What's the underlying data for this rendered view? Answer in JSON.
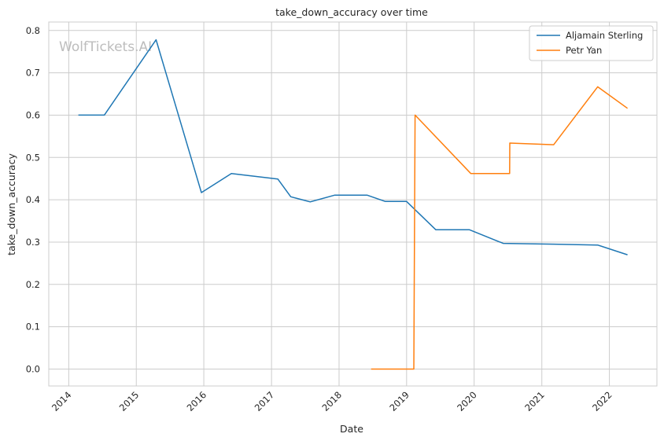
{
  "chart_data": {
    "type": "line",
    "title": "take_down_accuracy over time",
    "xlabel": "Date",
    "ylabel": "take_down_accuracy",
    "watermark": "WolfTickets.AI",
    "x_ticks": [
      "2014",
      "2015",
      "2016",
      "2017",
      "2018",
      "2019",
      "2020",
      "2021",
      "2022"
    ],
    "y_ticks": [
      "0.0",
      "0.1",
      "0.2",
      "0.3",
      "0.4",
      "0.5",
      "0.6",
      "0.7",
      "0.8"
    ],
    "xlim": [
      "2013-09-15",
      "2022-09-15"
    ],
    "ylim": [
      -0.04,
      0.82
    ],
    "grid": true,
    "legend_position": "top-right",
    "series": [
      {
        "name": "Aljamain Sterling",
        "color": "#1f77b4",
        "points": [
          [
            "2014-02-22",
            0.6
          ],
          [
            "2014-07-12",
            0.6
          ],
          [
            "2015-04-18",
            0.778
          ],
          [
            "2015-12-19",
            0.417
          ],
          [
            "2016-05-29",
            0.462
          ],
          [
            "2017-02-04",
            0.449
          ],
          [
            "2017-04-15",
            0.407
          ],
          [
            "2017-07-29",
            0.395
          ],
          [
            "2017-12-09",
            0.411
          ],
          [
            "2018-06-01",
            0.411
          ],
          [
            "2018-09-08",
            0.396
          ],
          [
            "2019-01-01",
            0.396
          ],
          [
            "2019-06-08",
            0.329
          ],
          [
            "2019-12-07",
            0.329
          ],
          [
            "2020-06-06",
            0.297
          ],
          [
            "2021-03-06",
            0.295
          ],
          [
            "2021-10-30",
            0.293
          ],
          [
            "2022-04-09",
            0.27
          ]
        ]
      },
      {
        "name": "Petr Yan",
        "color": "#ff7f0e",
        "points": [
          [
            "2018-06-23",
            0.0
          ],
          [
            "2019-02-09",
            0.0
          ],
          [
            "2019-02-16",
            0.6
          ],
          [
            "2019-12-14",
            0.462
          ],
          [
            "2020-07-11",
            0.462
          ],
          [
            "2020-07-12",
            0.534
          ],
          [
            "2021-03-06",
            0.53
          ],
          [
            "2021-10-30",
            0.667
          ],
          [
            "2022-04-09",
            0.616
          ]
        ]
      }
    ]
  }
}
